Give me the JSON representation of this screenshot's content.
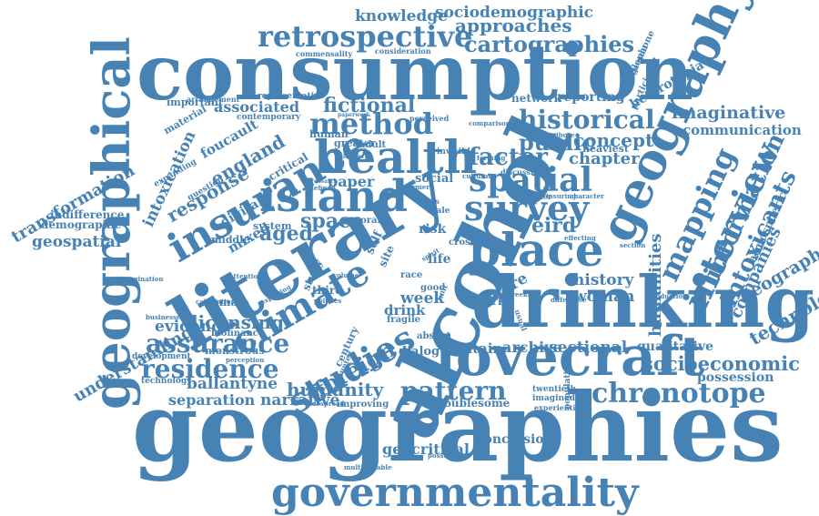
{
  "cloud": {
    "color": "#4682b4",
    "words": {
      "consumption": "consumption",
      "geographies": "geographies",
      "alcohol": "alcohol",
      "literary": "literary",
      "drinking": "drinking",
      "lovecraft": "lovecraft",
      "governmentality": "governmentality",
      "geographical": "geographical",
      "geography": "geography",
      "health": "health",
      "place": "place",
      "island": "island",
      "insurance": "insurance",
      "climate": "climate",
      "studies": "studies",
      "survey": "survey",
      "spatial": "spatial",
      "chronotope": "chronotope",
      "residence": "residence",
      "assurance": "assurance",
      "retrospective": "retrospective",
      "cartographies": "cartographies",
      "approaches": "approaches",
      "sociodemographic": "sociodemographic",
      "knowledge": "knowledge",
      "method": "method",
      "historical": "historical",
      "fictional": "fictional",
      "public": "public",
      "factor": "factor",
      "concept": "concept",
      "chapter": "chapter",
      "mapping": "mapping",
      "interview": "interview",
      "information": "information",
      "intoxicants": "intoxicants",
      "technologies": "technologies",
      "geographer": "geographer",
      "humanities": "humanities",
      "companies": "companies",
      "imaginative": "imaginative",
      "communication": "communication",
      "socioeconomic": "socioeconomic",
      "possession": "possession",
      "qualitative": "qualitative",
      "pattern": "pattern",
      "humanity": "humanity",
      "narrative": "narrative",
      "separation": "separation",
      "ballantyne": "ballantyne",
      "licensing": "licensing",
      "evidence": "evidence",
      "foreign": "foreign",
      "space": "space",
      "aged": "aged",
      "weird": "weird",
      "history": "history",
      "woman": "woman",
      "week": "week",
      "archive": "archive",
      "britain": "britain",
      "sectional": "sectional",
      "geocritical": "geocritical",
      "conclusion": "conclusion",
      "transformation": "transformation",
      "understanding": "understanding",
      "geospatial": "geospatial",
      "demographic": "demographic",
      "indifference": "indifference",
      "intoxication": "intoxication",
      "response": "response",
      "england": "england",
      "foucault": "foucault",
      "associated": "associated",
      "paper": "paper",
      "heterotopia": "heterotopia",
      "reporting": "reporting",
      "network": "network",
      "atmospheric": "atmospheric",
      "troublesome": "troublesome",
      "dialogue": "dialogue",
      "drink": "drink",
      "risk": "risk",
      "life": "life",
      "more": "more",
      "social": "social",
      "mixed": "mixed",
      "digital": "digital",
      "system": "system",
      "middle": "middle",
      "greater": "greater",
      "adult": "adult",
      "human": "human",
      "critical": "critical",
      "material": "material",
      "important": "important",
      "contemporary": "contemporary",
      "arrangement": "arrangement",
      "representative": "representative",
      "commensality": "commensality",
      "consideration": "consideration",
      "anglophone": "anglophone",
      "environmental": "environmental",
      "participant": "participant",
      "heaviest": "heaviest",
      "female": "female",
      "biofinance": "biofinance",
      "monstrous": "monstrous",
      "development": "development",
      "technology": "technology",
      "businesses": "businesses",
      "calculation": "calculation",
      "imagination": "imagination",
      "third": "third",
      "study": "study",
      "work": "work",
      "twentieth": "twentieth",
      "imagined": "imagined",
      "experiential": "experiential",
      "population": "population",
      "improving": "improving",
      "widespread": "widespread",
      "possibilities": "possibilities",
      "multivariable": "multivariable",
      "century": "century",
      "absent": "absent",
      "fragile": "fragile",
      "coral": "coral",
      "cross": "cross",
      "good": "good",
      "self": "self",
      "site": "site",
      "race": "race",
      "perceived": "perceived",
      "comparison": "comparison",
      "discussion": "discussion",
      "weather": "weather",
      "insuring": "insuring",
      "weekly": "weekly",
      "difference": "difference",
      "production": "production",
      "expanding": "expanding",
      "question": "question",
      "invisible": "invisible",
      "cultural": "cultural",
      "male": "male",
      "glass": "glass",
      "policies": "policies",
      "volume": "volume",
      "effecting": "effecting",
      "section": "section",
      "character": "character",
      "contribute": "contribute",
      "haunted": "haunted",
      "sensible": "sensible",
      "forming": "forming",
      "former": "former",
      "defined": "defined",
      "attention": "attention",
      "perception": "perception",
      "unit": "unit",
      "usual": "usual",
      "spirit": "spirit",
      "exploring": "exploring",
      "research": "research",
      "paperwork": "paperwork",
      "element": "element"
    }
  }
}
